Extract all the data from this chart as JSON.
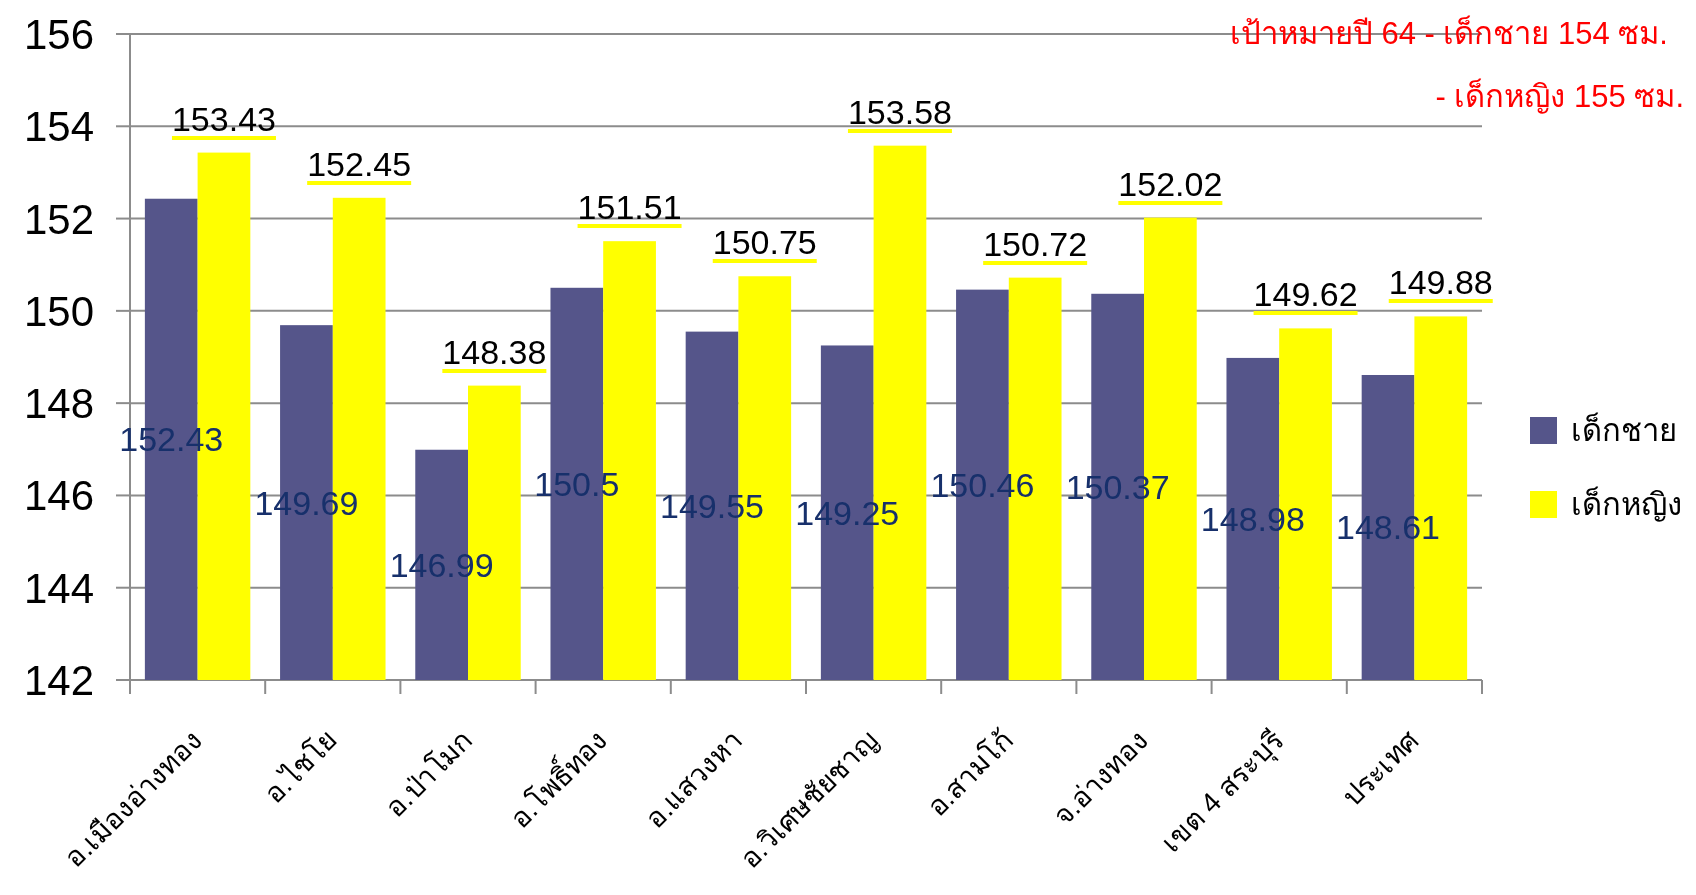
{
  "chart_data": {
    "type": "bar",
    "categories": [
      "อ.เมืองอ่างทอง",
      "อ.ไชโย",
      "อ.ป่าโมก",
      "อ.โพธิ์ทอง",
      "อ.แสวงหา",
      "อ.วิเศษชัยชาญ",
      "อ.สามโก้",
      "จ.อ่างทอง",
      "เขต 4 สระบุรี",
      "ประเทศ"
    ],
    "series": [
      {
        "name": "เด็กชาย",
        "color": "#55558a",
        "values": [
          152.43,
          149.69,
          146.99,
          150.5,
          149.55,
          149.25,
          150.46,
          150.37,
          148.98,
          148.61
        ]
      },
      {
        "name": "เด็กหญิง",
        "color": "#ffff00",
        "values": [
          153.43,
          152.45,
          148.38,
          151.51,
          150.75,
          153.58,
          150.72,
          152.02,
          149.62,
          149.88
        ]
      }
    ],
    "ylim": [
      142,
      156
    ],
    "yticks": [
      142,
      144,
      146,
      148,
      150,
      152,
      154,
      156
    ],
    "grid": "y",
    "legend": "right",
    "data_labels": true,
    "annotations": [
      "เป้าหมายปี 64 - เด็กชาย 154 ซม.",
      "- เด็กหญิง 155 ซม."
    ]
  }
}
